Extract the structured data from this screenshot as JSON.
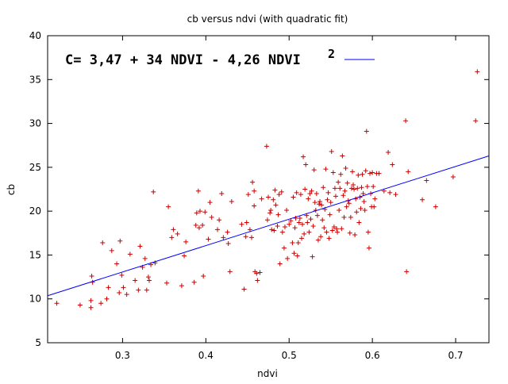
{
  "chart_data": {
    "type": "scatter",
    "title": "cb versus ndvi (with quadratic fit)",
    "xlabel": "ndvi",
    "ylabel": "cb",
    "xlim": [
      0.21,
      0.74
    ],
    "ylim": [
      5,
      40
    ],
    "xticks": [
      "0.3",
      "0.4",
      "0.5",
      "0.6",
      "0.7"
    ],
    "yticks": [
      "5",
      "10",
      "15",
      "20",
      "25",
      "30",
      "35",
      "40"
    ],
    "grid": false,
    "legend": {
      "text": "C= 3,47 + 34 NDVI - 4,26 NDVI",
      "superscript": "2",
      "placement": "top-left"
    },
    "series": [
      {
        "type": "fit-line",
        "color": "#0000ff",
        "x": [
          0.21,
          0.74
        ],
        "y": [
          10.36,
          26.3
        ]
      },
      {
        "type": "points",
        "marker": "plus",
        "color": "#cc0000",
        "points": [
          [
            0.221,
            9.5
          ],
          [
            0.249,
            9.3
          ],
          [
            0.262,
            9.8
          ],
          [
            0.262,
            9.0
          ],
          [
            0.264,
            11.9
          ],
          [
            0.263,
            12.6
          ],
          [
            0.274,
            9.5
          ],
          [
            0.276,
            16.4
          ],
          [
            0.281,
            10.0
          ],
          [
            0.283,
            11.3
          ],
          [
            0.287,
            15.5
          ],
          [
            0.293,
            14.0
          ],
          [
            0.296,
            10.7
          ],
          [
            0.297,
            16.6
          ],
          [
            0.299,
            12.7
          ],
          [
            0.301,
            11.3
          ],
          [
            0.305,
            10.5
          ],
          [
            0.309,
            15.1
          ],
          [
            0.315,
            12.1
          ],
          [
            0.319,
            11.0
          ],
          [
            0.321,
            16.0
          ],
          [
            0.324,
            13.6
          ],
          [
            0.327,
            14.6
          ],
          [
            0.329,
            11.0
          ],
          [
            0.331,
            12.5
          ],
          [
            0.332,
            12.1
          ],
          [
            0.334,
            13.9
          ],
          [
            0.337,
            22.2
          ],
          [
            0.339,
            14.1
          ],
          [
            0.353,
            11.8
          ],
          [
            0.355,
            20.5
          ],
          [
            0.359,
            17.0
          ],
          [
            0.361,
            17.9
          ],
          [
            0.366,
            17.4
          ],
          [
            0.371,
            11.5
          ],
          [
            0.374,
            14.9
          ],
          [
            0.376,
            16.5
          ],
          [
            0.386,
            11.9
          ],
          [
            0.388,
            18.4
          ],
          [
            0.389,
            19.8
          ],
          [
            0.391,
            22.3
          ],
          [
            0.392,
            18.1
          ],
          [
            0.393,
            20.0
          ],
          [
            0.396,
            18.4
          ],
          [
            0.397,
            12.6
          ],
          [
            0.399,
            19.9
          ],
          [
            0.403,
            16.8
          ],
          [
            0.405,
            21.0
          ],
          [
            0.407,
            19.3
          ],
          [
            0.414,
            17.9
          ],
          [
            0.416,
            19.0
          ],
          [
            0.419,
            22.0
          ],
          [
            0.421,
            17.0
          ],
          [
            0.426,
            17.6
          ],
          [
            0.427,
            16.3
          ],
          [
            0.429,
            13.1
          ],
          [
            0.431,
            21.1
          ],
          [
            0.443,
            18.5
          ],
          [
            0.446,
            11.1
          ],
          [
            0.448,
            17.1
          ],
          [
            0.449,
            18.7
          ],
          [
            0.451,
            21.9
          ],
          [
            0.453,
            17.9
          ],
          [
            0.455,
            17.0
          ],
          [
            0.456,
            23.3
          ],
          [
            0.458,
            22.3
          ],
          [
            0.458,
            20.6
          ],
          [
            0.459,
            13.1
          ],
          [
            0.461,
            12.9
          ],
          [
            0.462,
            12.1
          ],
          [
            0.465,
            13.0
          ],
          [
            0.467,
            21.4
          ],
          [
            0.473,
            27.4
          ],
          [
            0.474,
            19.0
          ],
          [
            0.475,
            21.6
          ],
          [
            0.477,
            19.8
          ],
          [
            0.478,
            20.1
          ],
          [
            0.479,
            17.9
          ],
          [
            0.481,
            21.3
          ],
          [
            0.482,
            17.8
          ],
          [
            0.483,
            22.4
          ],
          [
            0.484,
            20.7
          ],
          [
            0.486,
            18.3
          ],
          [
            0.487,
            19.6
          ],
          [
            0.488,
            21.9
          ],
          [
            0.489,
            14.0
          ],
          [
            0.491,
            22.2
          ],
          [
            0.492,
            17.6
          ],
          [
            0.494,
            15.8
          ],
          [
            0.495,
            18.2
          ],
          [
            0.497,
            20.1
          ],
          [
            0.498,
            14.6
          ],
          [
            0.5,
            18.5
          ],
          [
            0.502,
            18.9
          ],
          [
            0.504,
            16.4
          ],
          [
            0.505,
            21.6
          ],
          [
            0.506,
            15.2
          ],
          [
            0.507,
            18.1
          ],
          [
            0.508,
            19.2
          ],
          [
            0.509,
            22.1
          ],
          [
            0.51,
            14.9
          ],
          [
            0.511,
            16.4
          ],
          [
            0.512,
            18.7
          ],
          [
            0.513,
            19.2
          ],
          [
            0.514,
            21.9
          ],
          [
            0.515,
            16.9
          ],
          [
            0.516,
            18.5
          ],
          [
            0.517,
            26.2
          ],
          [
            0.518,
            17.4
          ],
          [
            0.519,
            22.5
          ],
          [
            0.52,
            25.3
          ],
          [
            0.521,
            19.5
          ],
          [
            0.522,
            18.7
          ],
          [
            0.523,
            21.4
          ],
          [
            0.524,
            17.6
          ],
          [
            0.525,
            22.0
          ],
          [
            0.526,
            19.1
          ],
          [
            0.527,
            22.3
          ],
          [
            0.528,
            14.8
          ],
          [
            0.529,
            18.3
          ],
          [
            0.53,
            24.7
          ],
          [
            0.531,
            21.0
          ],
          [
            0.532,
            20.1
          ],
          [
            0.533,
            22.0
          ],
          [
            0.534,
            19.5
          ],
          [
            0.535,
            16.7
          ],
          [
            0.536,
            20.8
          ],
          [
            0.537,
            21.1
          ],
          [
            0.538,
            17.1
          ],
          [
            0.539,
            20.7
          ],
          [
            0.54,
            19.0
          ],
          [
            0.541,
            22.7
          ],
          [
            0.542,
            18.1
          ],
          [
            0.543,
            20.2
          ],
          [
            0.544,
            24.8
          ],
          [
            0.545,
            17.6
          ],
          [
            0.546,
            21.3
          ],
          [
            0.547,
            22.1
          ],
          [
            0.548,
            16.9
          ],
          [
            0.549,
            19.6
          ],
          [
            0.55,
            21.0
          ],
          [
            0.551,
            26.8
          ],
          [
            0.552,
            17.8
          ],
          [
            0.553,
            24.4
          ],
          [
            0.554,
            18.2
          ],
          [
            0.555,
            22.6
          ],
          [
            0.556,
            21.7
          ],
          [
            0.557,
            18.0
          ],
          [
            0.558,
            17.6
          ],
          [
            0.559,
            23.3
          ],
          [
            0.56,
            20.1
          ],
          [
            0.561,
            22.6
          ],
          [
            0.562,
            24.2
          ],
          [
            0.563,
            18.0
          ],
          [
            0.564,
            26.3
          ],
          [
            0.565,
            21.8
          ],
          [
            0.566,
            19.3
          ],
          [
            0.567,
            22.3
          ],
          [
            0.568,
            24.9
          ],
          [
            0.569,
            20.5
          ],
          [
            0.57,
            23.2
          ],
          [
            0.571,
            21.2
          ],
          [
            0.572,
            20.9
          ],
          [
            0.573,
            17.5
          ],
          [
            0.574,
            19.3
          ],
          [
            0.575,
            22.6
          ],
          [
            0.576,
            24.5
          ],
          [
            0.577,
            23.0
          ],
          [
            0.578,
            22.5
          ],
          [
            0.579,
            17.3
          ],
          [
            0.58,
            21.4
          ],
          [
            0.581,
            19.9
          ],
          [
            0.582,
            22.6
          ],
          [
            0.583,
            24.1
          ],
          [
            0.584,
            18.7
          ],
          [
            0.585,
            21.6
          ],
          [
            0.586,
            20.3
          ],
          [
            0.587,
            22.7
          ],
          [
            0.588,
            24.2
          ],
          [
            0.589,
            22.0
          ],
          [
            0.59,
            21.1
          ],
          [
            0.591,
            20.1
          ],
          [
            0.592,
            24.6
          ],
          [
            0.593,
            29.1
          ],
          [
            0.594,
            22.8
          ],
          [
            0.595,
            17.6
          ],
          [
            0.596,
            15.8
          ],
          [
            0.597,
            24.3
          ],
          [
            0.598,
            22.0
          ],
          [
            0.599,
            20.5
          ],
          [
            0.6,
            24.4
          ],
          [
            0.601,
            22.8
          ],
          [
            0.602,
            20.5
          ],
          [
            0.603,
            21.4
          ],
          [
            0.605,
            24.3
          ],
          [
            0.608,
            24.3
          ],
          [
            0.614,
            22.3
          ],
          [
            0.619,
            26.7
          ],
          [
            0.621,
            22.1
          ],
          [
            0.624,
            25.3
          ],
          [
            0.628,
            21.9
          ],
          [
            0.64,
            30.3
          ],
          [
            0.641,
            13.1
          ],
          [
            0.643,
            24.5
          ],
          [
            0.66,
            21.3
          ],
          [
            0.665,
            23.5
          ],
          [
            0.676,
            20.5
          ],
          [
            0.697,
            23.9
          ],
          [
            0.724,
            30.3
          ],
          [
            0.726,
            35.9
          ]
        ]
      }
    ]
  }
}
